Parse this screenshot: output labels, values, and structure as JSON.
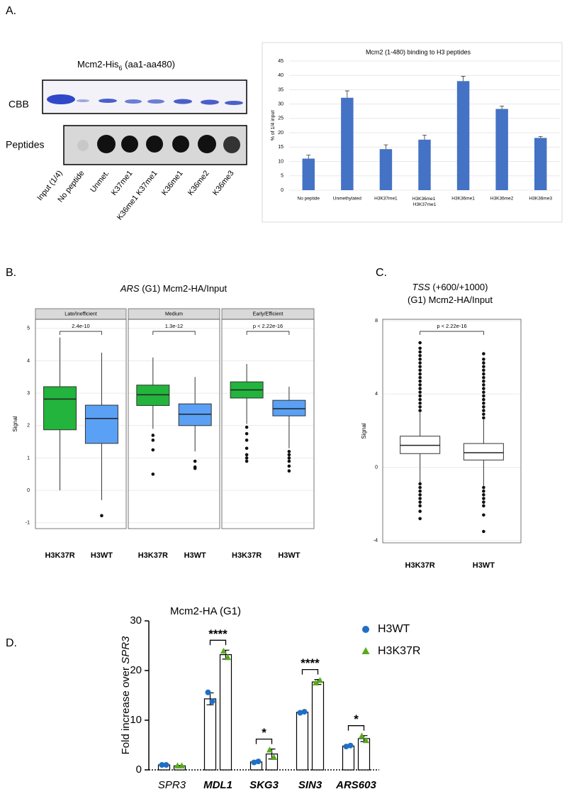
{
  "panel_labels": [
    "A.",
    "B.",
    "C.",
    "D."
  ],
  "gel": {
    "title_parts": [
      {
        "text": "Mcm2-His"
      },
      {
        "text": "6",
        "sub": true
      },
      {
        "text": " (aa1-aa480)"
      }
    ],
    "rows": [
      "CBB",
      "Peptides"
    ],
    "lanes": [
      "Input (1/4)",
      "No peptide",
      "Unmet.",
      "K37me1",
      "K36me1 K37me1",
      "K36me1",
      "K36me2",
      "K36me3"
    ]
  },
  "chart_data": [
    {
      "type": "bar",
      "title": "Mcm2 (1-480) binding  to H3 peptides",
      "ylabel": "% of 1/4 input",
      "categories": [
        "No peptide",
        "Unmethylated",
        "H3K37me1",
        "H3K36me1 H3K37me1",
        "H3K36me1",
        "H3K36me2",
        "H3K36me3"
      ],
      "values": [
        11,
        32.2,
        14.3,
        17.6,
        38,
        28.3,
        18.2
      ],
      "errors": [
        1.2,
        2.4,
        1.5,
        1.6,
        1.7,
        1,
        0.5
      ],
      "color": "#4472c4",
      "ylim": [
        0,
        45
      ],
      "yticks": [
        0,
        5,
        10,
        15,
        20,
        25,
        30,
        35,
        40,
        45
      ],
      "grid": true
    },
    {
      "type": "box",
      "title_lines": [
        [
          {
            "text": "ARS",
            "italic": true
          },
          {
            "text": " (G1) Mcm2-HA/Input"
          }
        ]
      ],
      "ylabel": "Signal",
      "categories": [
        "H3K37R",
        "H3WT"
      ],
      "colors": [
        "#22b43c",
        "#5aa0f5"
      ],
      "label_colors": [
        "#27a33a",
        "#2f73c7"
      ],
      "label_bold": true,
      "ylim": [
        -1.18,
        5.28
      ],
      "yticks": [
        -1,
        0,
        1,
        2,
        3,
        4,
        5
      ],
      "grid": true,
      "facets": [
        {
          "name": "Late/Inefficient",
          "pvalue": "2.4e-10",
          "boxes": [
            {
              "whislo": 0,
              "q1": 1.87,
              "med": 2.82,
              "q3": 3.2,
              "whishi": 4.72,
              "fliers": []
            },
            {
              "whislo": -0.3,
              "q1": 1.45,
              "med": 2.22,
              "q3": 2.63,
              "whishi": 4.25,
              "fliers": [
                -0.78
              ]
            }
          ]
        },
        {
          "name": "Medium",
          "pvalue": "1.3e-12",
          "boxes": [
            {
              "whislo": 1.9,
              "q1": 2.62,
              "med": 2.95,
              "q3": 3.25,
              "whishi": 4.1,
              "fliers": [
                1.7,
                1.55,
                1.25,
                0.5
              ]
            },
            {
              "whislo": 1.2,
              "q1": 2.0,
              "med": 2.35,
              "q3": 2.67,
              "whishi": 3.5,
              "fliers": [
                0.9,
                0.72,
                0.68
              ]
            }
          ]
        },
        {
          "name": "Early/Efficient",
          "pvalue": "p < 2.22e-16",
          "boxes": [
            {
              "whislo": 2.05,
              "q1": 2.85,
              "med": 3.1,
              "q3": 3.35,
              "whishi": 3.9,
              "fliers": [
                1.95,
                1.75,
                1.55,
                1.3,
                1.1,
                1.0,
                0.9
              ]
            },
            {
              "whislo": 1.3,
              "q1": 2.3,
              "med": 2.52,
              "q3": 2.78,
              "whishi": 3.2,
              "fliers": [
                1.2,
                1.1,
                1.0,
                0.9,
                0.75,
                0.6
              ]
            }
          ]
        }
      ]
    },
    {
      "type": "box",
      "title_lines": [
        [
          {
            "text": "TSS",
            "italic": true
          },
          {
            "text": " (+600/+1000)"
          }
        ],
        [
          {
            "text": "(G1)  Mcm2-HA/Input"
          }
        ]
      ],
      "ylabel": "Signal",
      "categories": [
        "H3K37R",
        "H3WT"
      ],
      "colors": [
        "#ffffff",
        "#ffffff"
      ],
      "label_colors": [
        "#000000",
        "#000000"
      ],
      "label_bold": true,
      "ylim": [
        -4.12,
        8.08
      ],
      "yticks": [
        -4,
        0,
        4,
        8
      ],
      "grid": true,
      "facets": [
        {
          "pvalue": "p < 2.22e-16",
          "boxes": [
            {
              "whislo": -0.8,
              "q1": 0.75,
              "med": 1.2,
              "q3": 1.7,
              "whishi": 3.0,
              "fliers": [
                3.1,
                3.3,
                3.5,
                3.7,
                3.9,
                4.1,
                4.3,
                4.5,
                4.7,
                4.9,
                5.1,
                5.3,
                5.5,
                5.7,
                5.9,
                6.1,
                6.3,
                6.5,
                6.8,
                -0.9,
                -1.1,
                -1.3,
                -1.5,
                -1.7,
                -1.9,
                -2.1,
                -2.4,
                -2.8
              ]
            },
            {
              "whislo": -1.0,
              "q1": 0.4,
              "med": 0.8,
              "q3": 1.3,
              "whishi": 2.6,
              "fliers": [
                2.7,
                2.9,
                3.1,
                3.3,
                3.5,
                3.7,
                3.9,
                4.1,
                4.3,
                4.5,
                4.7,
                4.9,
                5.1,
                5.3,
                5.5,
                5.7,
                5.9,
                6.2,
                -1.1,
                -1.3,
                -1.5,
                -1.7,
                -1.9,
                -2.1,
                -2.6,
                -3.5
              ]
            }
          ]
        }
      ]
    },
    {
      "type": "bar",
      "title": "Mcm2-HA  (G1)",
      "ylabel_parts": [
        {
          "text": "Fold increase over "
        },
        {
          "text": "SPR3",
          "italic": true
        }
      ],
      "categories": [
        "SPR3",
        "MDL1",
        "SKG3",
        "SIN3",
        "ARS603"
      ],
      "category_bold": [
        false,
        true,
        true,
        true,
        true
      ],
      "bar_fill": "#ffffff",
      "ylim": [
        0,
        30
      ],
      "yticks": [
        0,
        10,
        20,
        30
      ],
      "significance": [
        null,
        "****",
        "*",
        "****",
        "*"
      ],
      "series": [
        {
          "name": "H3WT",
          "color": "#1f6fc6",
          "marker": "circle",
          "values": [
            1,
            14.3,
            1.6,
            11.6,
            4.8
          ],
          "errors": [
            0.1,
            1.2,
            0.2,
            0.1,
            0.2
          ],
          "points": [
            [
              1,
              1
            ],
            [
              15.6,
              13.8
            ],
            [
              1.5,
              1.7
            ],
            [
              11.5,
              11.7
            ],
            [
              4.7,
              4.9
            ]
          ]
        },
        {
          "name": "H3K37R",
          "color": "#5aaa1e",
          "marker": "triangle",
          "values": [
            0.8,
            23.2,
            3.2,
            17.7,
            6.3
          ],
          "errors": [
            0.1,
            0.9,
            1.0,
            0.5,
            0.6
          ],
          "points": [
            [
              0.8,
              0.8
            ],
            [
              23.9,
              22.6
            ],
            [
              4.0,
              2.5
            ],
            [
              17.5,
              18.0
            ],
            [
              6.8,
              5.9
            ]
          ]
        }
      ]
    }
  ]
}
